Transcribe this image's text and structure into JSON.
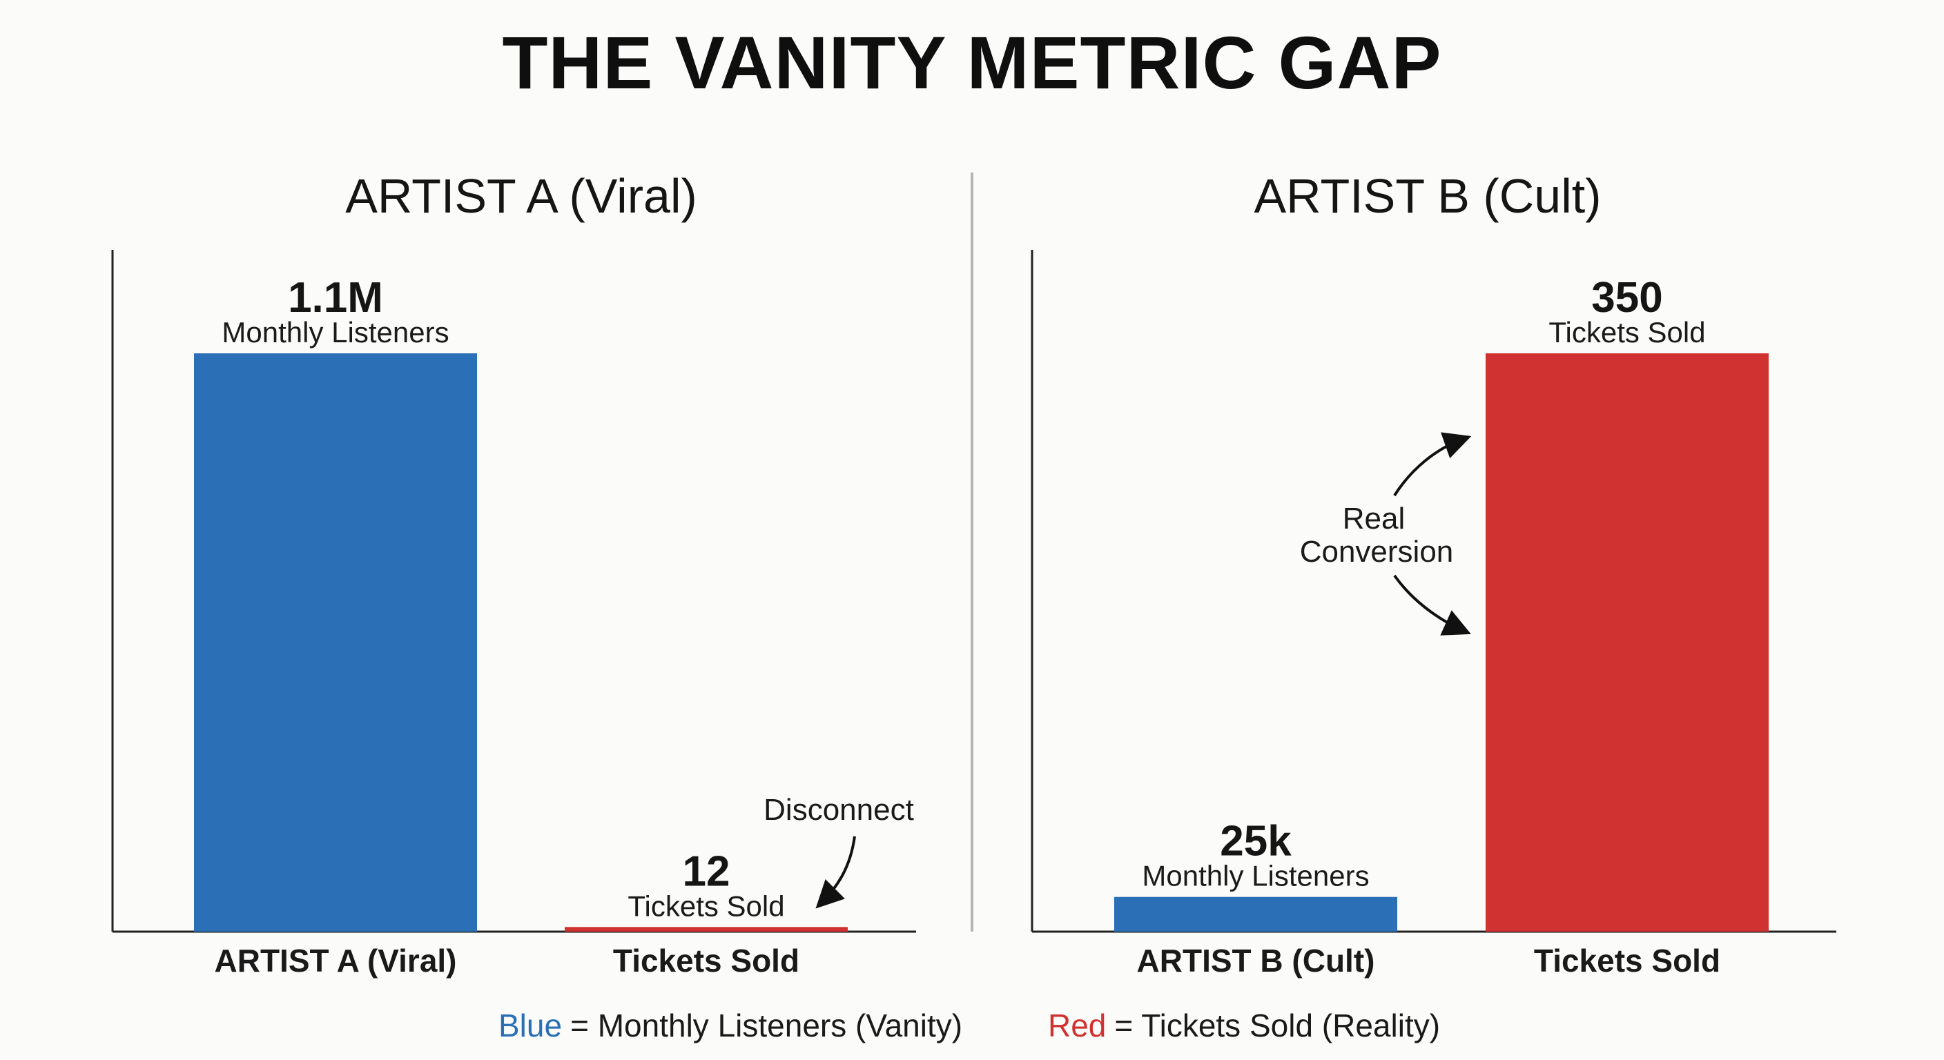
{
  "title": "THE VANITY METRIC GAP",
  "chart_data": [
    {
      "type": "bar",
      "title": "ARTIST A (Viral)",
      "categories": [
        "ARTIST A (Viral)",
        "Tickets Sold"
      ],
      "values": [
        1100000,
        12
      ],
      "value_labels": [
        "1.1M",
        "12"
      ],
      "value_sublabels": [
        "Monthly Listeners",
        "Tickets Sold"
      ],
      "bar_colors": [
        "#2b6fb6",
        "#d03232"
      ],
      "annotation": "Disconnect",
      "scale": "independent per metric"
    },
    {
      "type": "bar",
      "title": "ARTIST B (Cult)",
      "categories": [
        "ARTIST B (Cult)",
        "Tickets Sold"
      ],
      "values": [
        25000,
        350
      ],
      "value_labels": [
        "25k",
        "350"
      ],
      "value_sublabels": [
        "Monthly Listeners",
        "Tickets Sold"
      ],
      "bar_colors": [
        "#2b6fb6",
        "#d03232"
      ],
      "annotation_lines": [
        "Real",
        "Conversion"
      ],
      "scale": "independent per metric"
    }
  ],
  "legend": [
    {
      "key": "Blue",
      "text": "= Monthly Listeners (Vanity)",
      "color": "#2b6fb6"
    },
    {
      "key": "Red",
      "text": "= Tickets Sold (Reality)",
      "color": "#d03232"
    }
  ]
}
